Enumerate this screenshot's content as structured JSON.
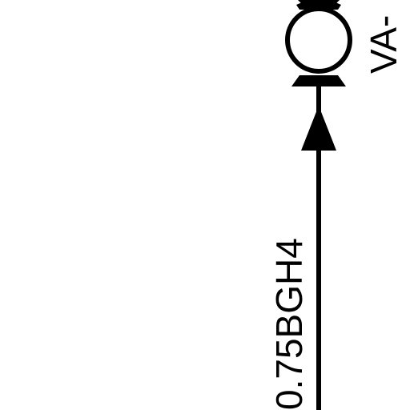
{
  "diagram": {
    "wire_label": "0.75BGH4",
    "connector_label": "VA-"
  }
}
